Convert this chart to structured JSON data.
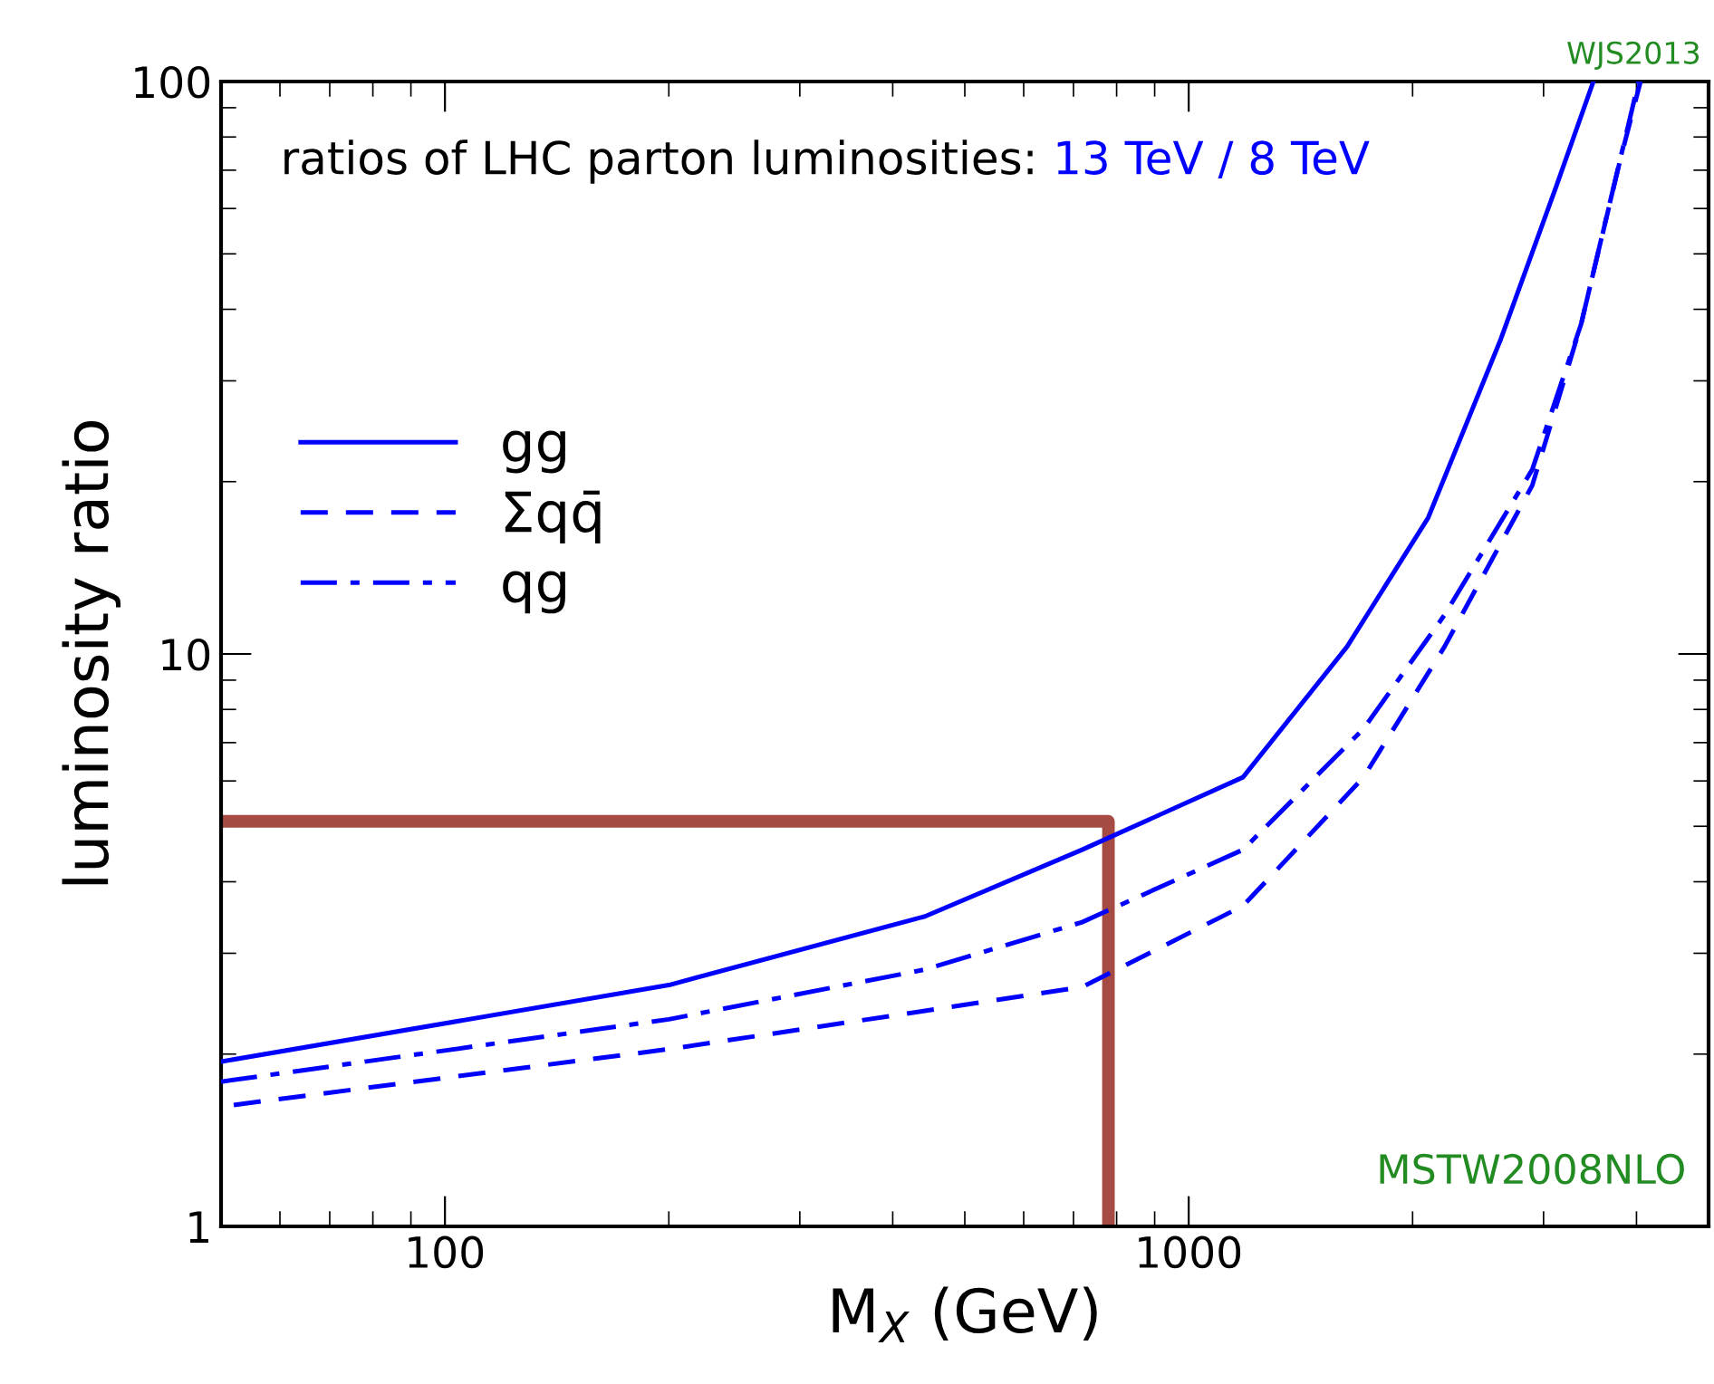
{
  "chart_data": {
    "type": "line",
    "title": "ratios of LHC parton luminosities:",
    "subtitle": "13 TeV / 8 TeV",
    "xlabel": "M$_{X}$ (GeV)",
    "ylabel": "luminosity ratio",
    "log": "xy",
    "xlim": [
      50,
      5000
    ],
    "ylim": [
      1,
      100
    ],
    "xticks": [
      100,
      1000
    ],
    "yticks": [
      1,
      10,
      100
    ],
    "grid": false,
    "legend": "left",
    "series": [
      {
        "name": "gg",
        "color": "#0000ff",
        "line_style": "solid",
        "x": [
          50,
          200,
          442,
          719,
          1183,
          1633,
          2099,
          2624,
          3119,
          3500
        ],
        "values": [
          1.94,
          2.64,
          3.48,
          4.55,
          6.09,
          10.3,
          17.3,
          35.3,
          65.5,
          100
        ]
      },
      {
        "name": "Σqq̄",
        "color": "#0000ff",
        "line_style": "dashed",
        "x": [
          52,
          200,
          442,
          719,
          1183,
          1718,
          2208,
          2897,
          3370,
          3800,
          4050
        ],
        "values": [
          1.63,
          2.04,
          2.38,
          2.62,
          3.63,
          6.09,
          10.3,
          19.7,
          37.7,
          72.6,
          100
        ]
      },
      {
        "name": "qg",
        "color": "#0000ff",
        "line_style": "dashdot",
        "x": [
          50,
          200,
          442,
          719,
          1183,
          1718,
          2208,
          2897,
          3370,
          3727,
          4027
        ],
        "values": [
          1.79,
          2.3,
          2.81,
          3.4,
          4.55,
          7.4,
          11.7,
          21.0,
          37.7,
          65.5,
          100
        ]
      },
      {
        "color": "#a54b44",
        "line_style": "solid",
        "x": [
          50,
          780,
          780
        ],
        "values": [
          5.1,
          5.1,
          1
        ]
      }
    ],
    "annotations": [
      "MSTW2008NLO",
      "WJS2013"
    ]
  }
}
